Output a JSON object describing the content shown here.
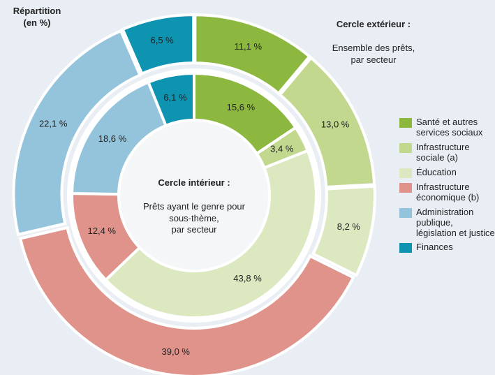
{
  "chart_data": {
    "type": "donut",
    "title": "Répartition\n(en %)",
    "categories": [
      "Santé et autres services sociaux",
      "Infrastructure sociale (a)",
      "Éducation",
      "Infrastructure économique (b)",
      "Administration publique, législation et justice",
      "Finances"
    ],
    "colors": [
      "#8cb840",
      "#c3d88f",
      "#dce8c0",
      "#e0938a",
      "#93c4dc",
      "#0e93b0"
    ],
    "series": [
      {
        "name": "Cercle extérieur :",
        "description": "Ensemble des prêts,\npar secteur",
        "values": [
          11.1,
          13.0,
          8.2,
          39.0,
          22.1,
          6.5
        ],
        "value_labels": [
          "11,1 %",
          "13,0 %",
          "8,2 %",
          "39,0 %",
          "22,1 %",
          "6,5 %"
        ]
      },
      {
        "name": "Cercle intérieur :",
        "description": "Prêts ayant le genre pour\nsous-thème,\npar secteur",
        "values": [
          15.6,
          3.4,
          43.8,
          12.4,
          18.6,
          6.1
        ],
        "value_labels": [
          "15,6 %",
          "3,4 %",
          "43,8 %",
          "12,4 %",
          "18,6 %",
          "6,1 %"
        ]
      }
    ]
  }
}
